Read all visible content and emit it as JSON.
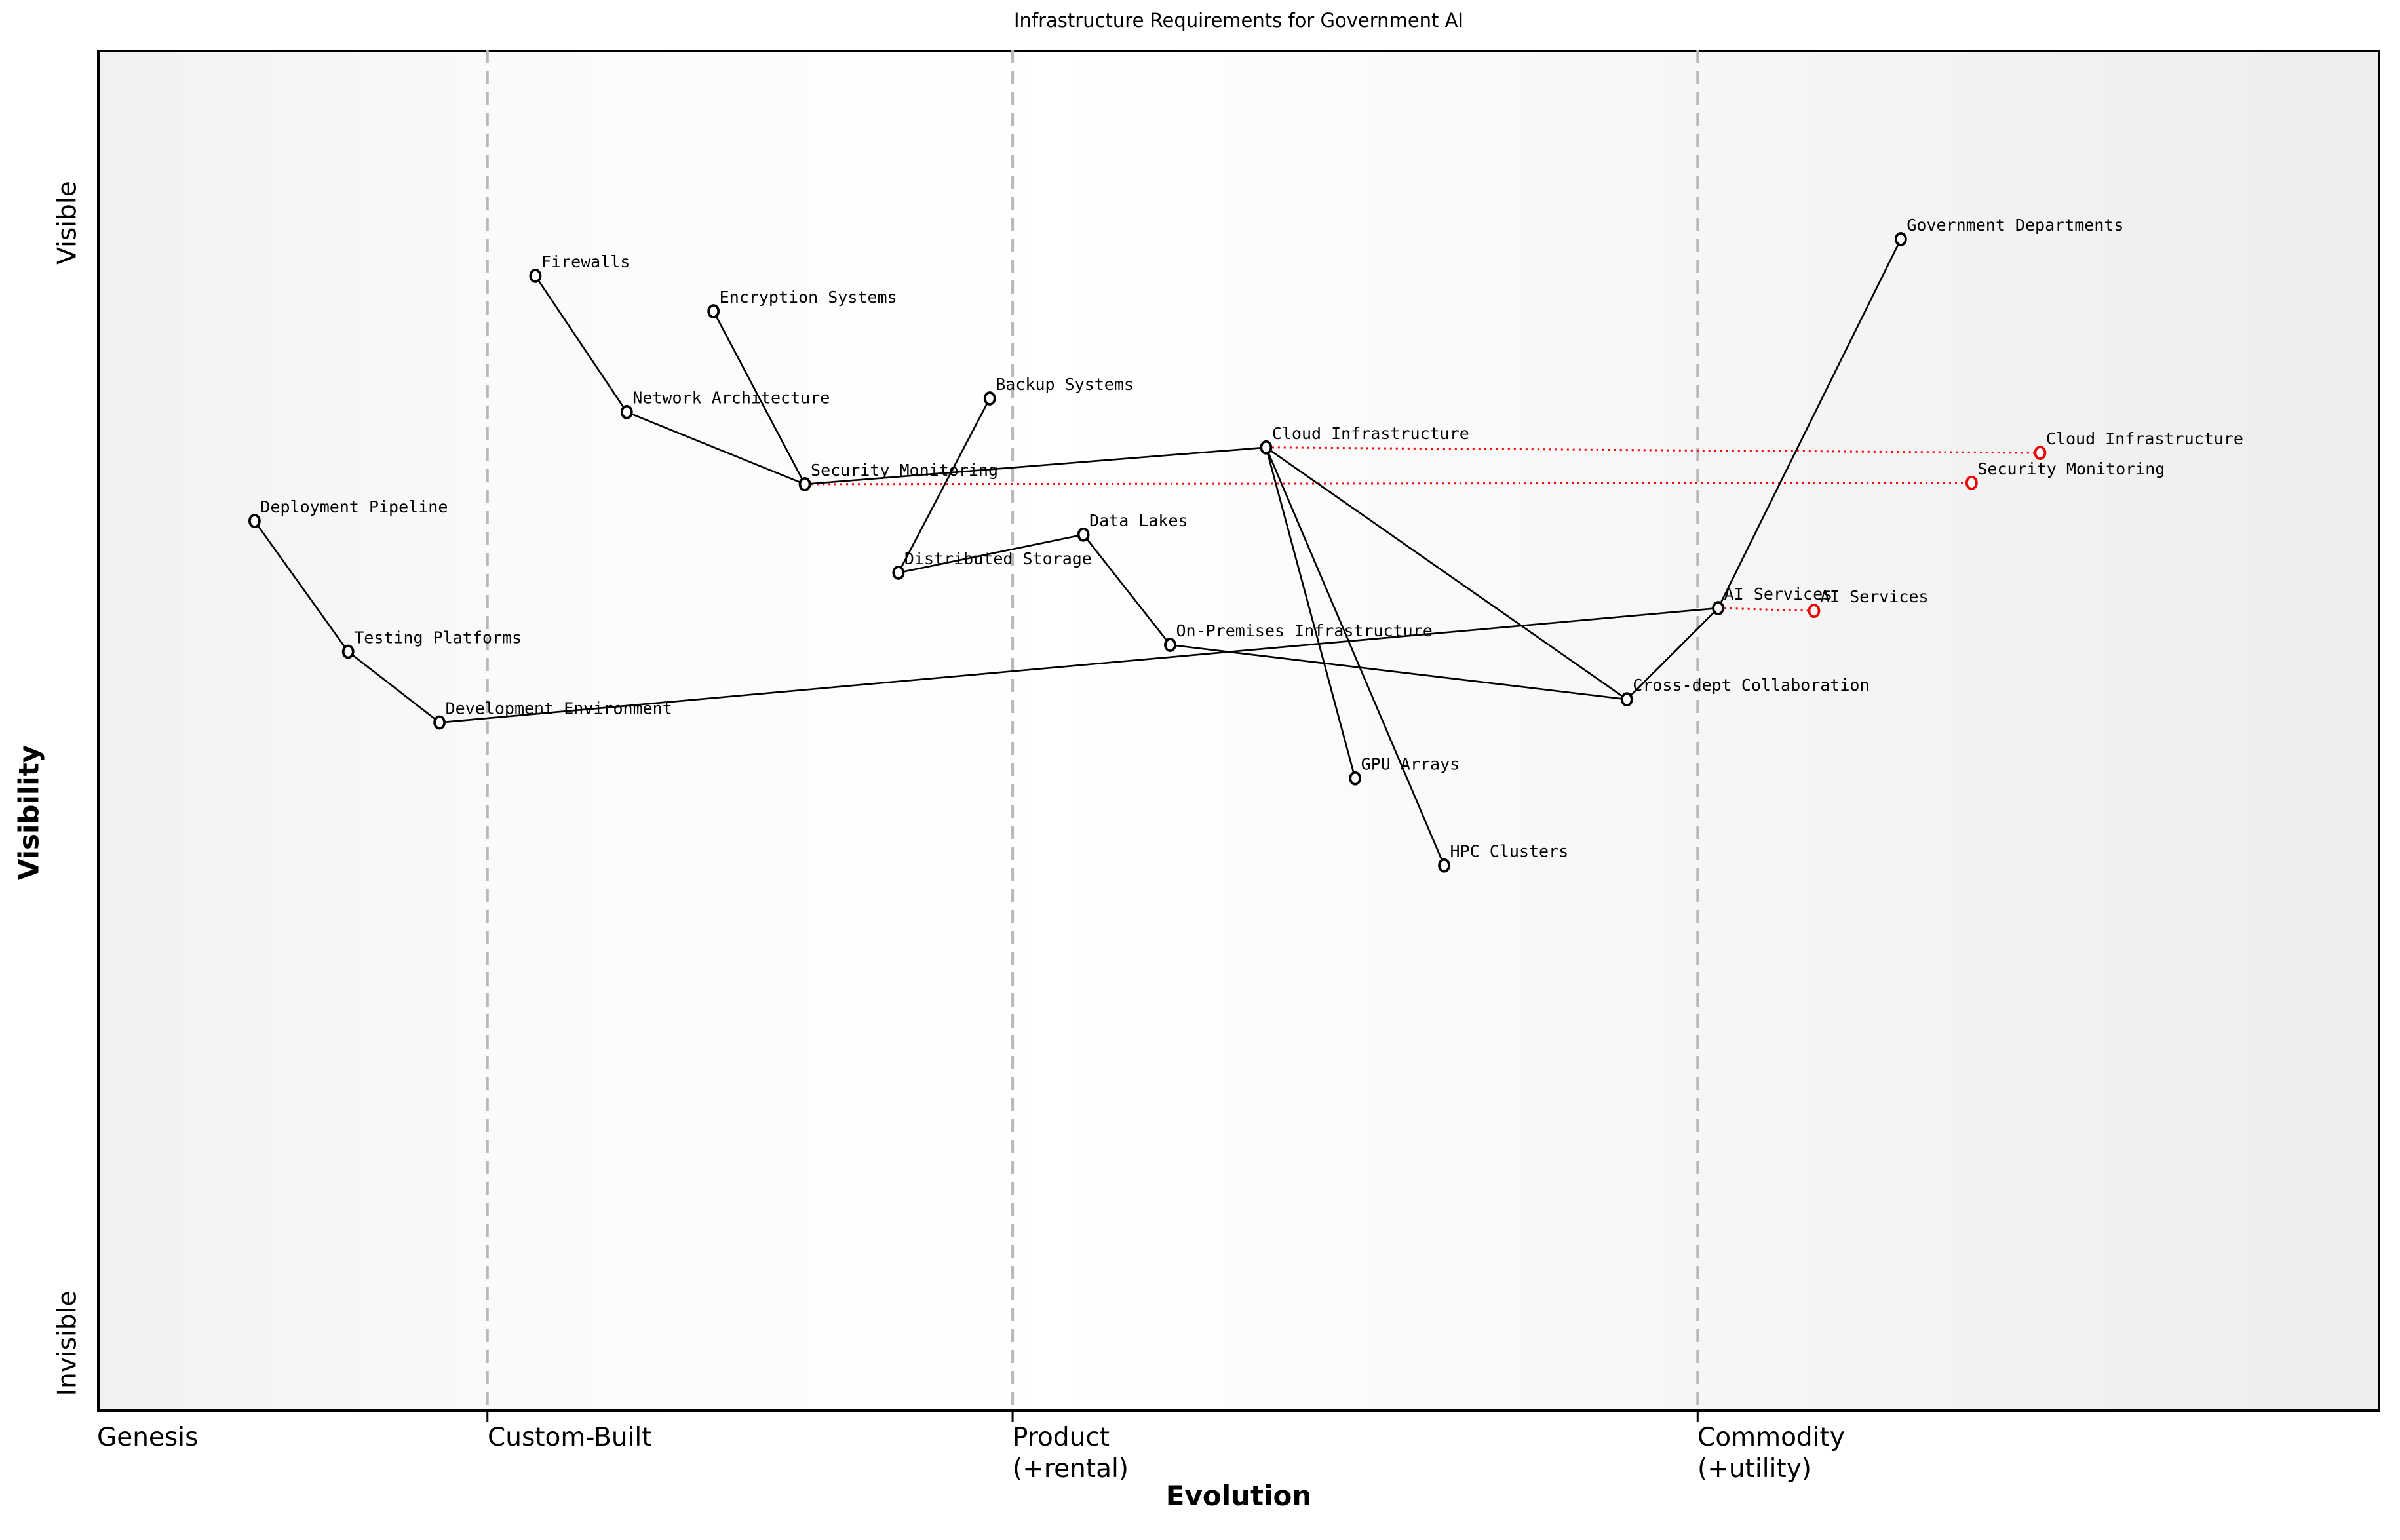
{
  "chart_data": {
    "type": "scatter",
    "subtype": "wardley-map",
    "title": "Infrastructure Requirements for Government AI",
    "xlabel": "Evolution",
    "ylabel": "Visibility",
    "x_ticks": [
      {
        "label": "Genesis",
        "sublabel": "",
        "x": 0.0
      },
      {
        "label": "Custom-Built",
        "sublabel": "",
        "x": 0.171
      },
      {
        "label": "Product",
        "sublabel": "(+rental)",
        "x": 0.401
      },
      {
        "label": "Commodity",
        "sublabel": "(+utility)",
        "x": 0.701
      }
    ],
    "y_ticks": [
      {
        "label": "Visible",
        "y": 0.127
      },
      {
        "label": "Invisible",
        "y": 0.95
      }
    ],
    "gridlines_x": [
      0.171,
      0.401,
      0.701
    ],
    "grid": "dashed-vertical-stage-lines",
    "legend": "none",
    "axis_ranges": {
      "x": [
        0,
        1
      ],
      "y": [
        0,
        1
      ]
    },
    "colors": {
      "node_stroke": "#000000",
      "node_fill": "#ffffff",
      "future_node_stroke": "#ee0000",
      "movement_line": "#ff0000",
      "edge": "#000000",
      "gridline": "#b8b8b8",
      "background_left": "#f1f1f1",
      "background_right": "#ededed"
    },
    "nodes": [
      {
        "id": "deployment-pipeline",
        "label": "Deployment Pipeline",
        "x": 0.069,
        "y": 0.346
      },
      {
        "id": "testing-platforms",
        "label": "Testing Platforms",
        "x": 0.11,
        "y": 0.442
      },
      {
        "id": "development-environment",
        "label": "Development Environment",
        "x": 0.15,
        "y": 0.494
      },
      {
        "id": "firewalls",
        "label": "Firewalls",
        "x": 0.192,
        "y": 0.166
      },
      {
        "id": "network-architecture",
        "label": "Network Architecture",
        "x": 0.232,
        "y": 0.266
      },
      {
        "id": "encryption-systems",
        "label": "Encryption Systems",
        "x": 0.27,
        "y": 0.192
      },
      {
        "id": "security-monitoring",
        "label": "Security Monitoring",
        "x": 0.31,
        "y": 0.319
      },
      {
        "id": "backup-systems",
        "label": "Backup Systems",
        "x": 0.391,
        "y": 0.256
      },
      {
        "id": "distributed-storage",
        "label": "Distributed Storage",
        "x": 0.351,
        "y": 0.384
      },
      {
        "id": "data-lakes",
        "label": "Data Lakes",
        "x": 0.432,
        "y": 0.356
      },
      {
        "id": "cloud-infrastructure",
        "label": "Cloud Infrastructure",
        "x": 0.512,
        "y": 0.292
      },
      {
        "id": "on-premises-infrastructure",
        "label": "On-Premises Infrastructure",
        "x": 0.47,
        "y": 0.437
      },
      {
        "id": "gpu-arrays",
        "label": "GPU Arrays",
        "x": 0.551,
        "y": 0.535
      },
      {
        "id": "hpc-clusters",
        "label": "HPC Clusters",
        "x": 0.59,
        "y": 0.599
      },
      {
        "id": "cross-dept-collaboration",
        "label": "Cross-dept Collaboration",
        "x": 0.67,
        "y": 0.477
      },
      {
        "id": "ai-services",
        "label": "AI Services",
        "x": 0.71,
        "y": 0.41
      },
      {
        "id": "government-departments",
        "label": "Government Departments",
        "x": 0.79,
        "y": 0.139
      }
    ],
    "future_nodes": [
      {
        "id": "ai-services-future",
        "label": "AI Services",
        "x": 0.752,
        "y": 0.412
      },
      {
        "id": "cloud-infrastructure-future",
        "label": "Cloud Infrastructure",
        "x": 0.851,
        "y": 0.296
      },
      {
        "id": "security-monitoring-future",
        "label": "Security Monitoring",
        "x": 0.821,
        "y": 0.318
      }
    ],
    "edges": [
      [
        "firewalls",
        "network-architecture"
      ],
      [
        "network-architecture",
        "security-monitoring"
      ],
      [
        "encryption-systems",
        "security-monitoring"
      ],
      [
        "security-monitoring",
        "cloud-infrastructure"
      ],
      [
        "backup-systems",
        "distributed-storage"
      ],
      [
        "distributed-storage",
        "data-lakes"
      ],
      [
        "data-lakes",
        "on-premises-infrastructure"
      ],
      [
        "on-premises-infrastructure",
        "cross-dept-collaboration"
      ],
      [
        "cloud-infrastructure",
        "gpu-arrays"
      ],
      [
        "cloud-infrastructure",
        "hpc-clusters"
      ],
      [
        "cloud-infrastructure",
        "cross-dept-collaboration"
      ],
      [
        "cross-dept-collaboration",
        "ai-services"
      ],
      [
        "ai-services",
        "government-departments"
      ],
      [
        "development-environment",
        "ai-services"
      ],
      [
        "deployment-pipeline",
        "testing-platforms"
      ],
      [
        "testing-platforms",
        "development-environment"
      ]
    ],
    "movements": [
      [
        "security-monitoring",
        "security-monitoring-future"
      ],
      [
        "cloud-infrastructure",
        "cloud-infrastructure-future"
      ],
      [
        "ai-services",
        "ai-services-future"
      ]
    ]
  }
}
